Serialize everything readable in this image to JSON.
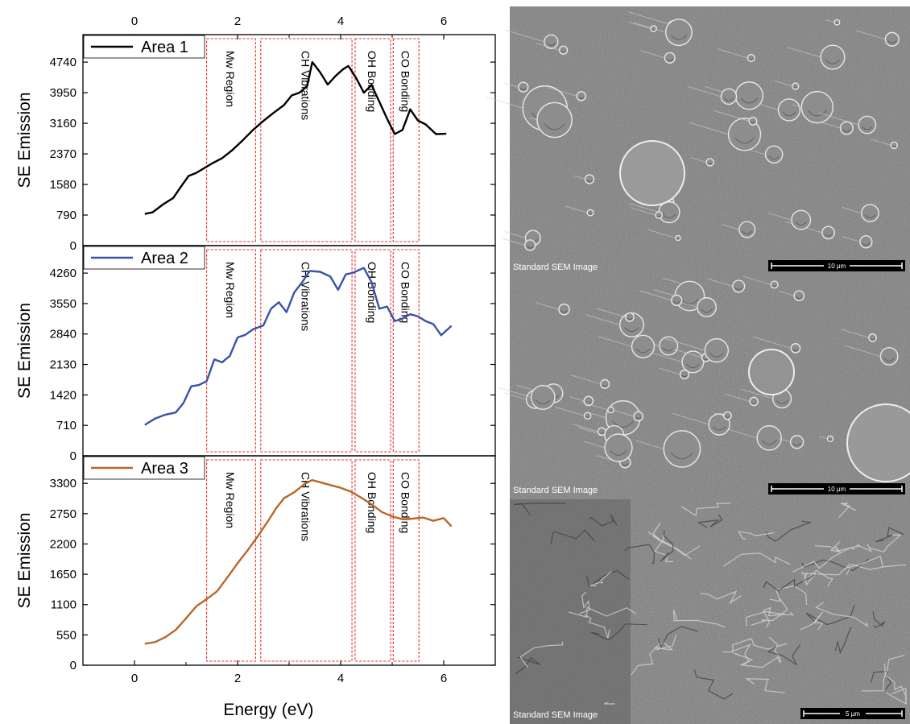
{
  "chart_data": {
    "type": "line",
    "shared_x": {
      "label": "Energy (eV)",
      "ticks": [
        0,
        2,
        4,
        6
      ],
      "range": [
        -1,
        7
      ]
    },
    "regions": [
      {
        "label": "Mw Region",
        "x_start": 1.4,
        "x_end": 2.35
      },
      {
        "label": "CH Vibrations",
        "x_start": 2.45,
        "x_end": 4.22
      },
      {
        "label": "OH Bonding",
        "x_start": 4.28,
        "x_end": 4.97
      },
      {
        "label": "CO Bonding",
        "x_start": 5.02,
        "x_end": 5.52
      }
    ],
    "panels": [
      {
        "ylabel": "SE Emission",
        "ylim": [
          0,
          5450
        ],
        "yticks": [
          0,
          790,
          1580,
          2370,
          3160,
          3950,
          4740
        ],
        "series": [
          {
            "name": "Area 1",
            "color": "#000000",
            "points": [
              [
                0.2,
                820
              ],
              [
                0.35,
                860
              ],
              [
                0.55,
                1060
              ],
              [
                0.75,
                1230
              ],
              [
                0.9,
                1520
              ],
              [
                1.05,
                1800
              ],
              [
                1.2,
                1880
              ],
              [
                1.35,
                2000
              ],
              [
                1.5,
                2120
              ],
              [
                1.7,
                2260
              ],
              [
                1.9,
                2470
              ],
              [
                2.1,
                2720
              ],
              [
                2.3,
                2990
              ],
              [
                2.5,
                3220
              ],
              [
                2.7,
                3430
              ],
              [
                2.9,
                3630
              ],
              [
                3.05,
                3880
              ],
              [
                3.2,
                3950
              ],
              [
                3.35,
                4120
              ],
              [
                3.45,
                4740
              ],
              [
                3.6,
                4480
              ],
              [
                3.75,
                4160
              ],
              [
                3.9,
                4380
              ],
              [
                4.05,
                4560
              ],
              [
                4.15,
                4640
              ],
              [
                4.3,
                4330
              ],
              [
                4.45,
                3950
              ],
              [
                4.6,
                4150
              ],
              [
                4.75,
                3720
              ],
              [
                4.9,
                3280
              ],
              [
                5.05,
                2880
              ],
              [
                5.2,
                2990
              ],
              [
                5.35,
                3520
              ],
              [
                5.5,
                3230
              ],
              [
                5.65,
                3130
              ],
              [
                5.85,
                2880
              ],
              [
                6.05,
                2890
              ]
            ]
          }
        ]
      },
      {
        "ylabel": "SE Emission",
        "ylim": [
          0,
          4900
        ],
        "yticks": [
          0,
          710,
          1420,
          2130,
          2840,
          3550,
          4260
        ],
        "series": [
          {
            "name": "Area 2",
            "color": "#3a52a8",
            "points": [
              [
                0.2,
                720
              ],
              [
                0.4,
                870
              ],
              [
                0.6,
                960
              ],
              [
                0.8,
                1010
              ],
              [
                0.95,
                1230
              ],
              [
                1.1,
                1620
              ],
              [
                1.25,
                1650
              ],
              [
                1.4,
                1740
              ],
              [
                1.55,
                2250
              ],
              [
                1.7,
                2180
              ],
              [
                1.85,
                2330
              ],
              [
                2.0,
                2760
              ],
              [
                2.15,
                2820
              ],
              [
                2.3,
                2950
              ],
              [
                2.5,
                3040
              ],
              [
                2.65,
                3430
              ],
              [
                2.8,
                3580
              ],
              [
                2.95,
                3350
              ],
              [
                3.1,
                3810
              ],
              [
                3.25,
                4040
              ],
              [
                3.4,
                4310
              ],
              [
                3.6,
                4290
              ],
              [
                3.8,
                4180
              ],
              [
                3.95,
                3870
              ],
              [
                4.1,
                4230
              ],
              [
                4.25,
                4270
              ],
              [
                4.35,
                4330
              ],
              [
                4.45,
                4380
              ],
              [
                4.6,
                4050
              ],
              [
                4.75,
                3430
              ],
              [
                4.9,
                3480
              ],
              [
                5.05,
                3140
              ],
              [
                5.2,
                3200
              ],
              [
                5.35,
                3300
              ],
              [
                5.5,
                3250
              ],
              [
                5.65,
                3140
              ],
              [
                5.8,
                3070
              ],
              [
                5.95,
                2810
              ],
              [
                6.15,
                3030
              ]
            ]
          }
        ]
      },
      {
        "ylabel": "SE Emission",
        "ylim": [
          0,
          3800
        ],
        "yticks": [
          0,
          550,
          1100,
          1650,
          2200,
          2750,
          3300
        ],
        "series": [
          {
            "name": "Area 3",
            "color": "#b8672a",
            "points": [
              [
                0.2,
                390
              ],
              [
                0.4,
                420
              ],
              [
                0.6,
                510
              ],
              [
                0.8,
                640
              ],
              [
                1.0,
                850
              ],
              [
                1.2,
                1070
              ],
              [
                1.4,
                1200
              ],
              [
                1.6,
                1340
              ],
              [
                1.8,
                1590
              ],
              [
                2.0,
                1850
              ],
              [
                2.2,
                2090
              ],
              [
                2.4,
                2350
              ],
              [
                2.6,
                2630
              ],
              [
                2.75,
                2850
              ],
              [
                2.9,
                3030
              ],
              [
                3.1,
                3140
              ],
              [
                3.3,
                3290
              ],
              [
                3.45,
                3360
              ],
              [
                3.6,
                3320
              ],
              [
                3.8,
                3270
              ],
              [
                4.0,
                3220
              ],
              [
                4.2,
                3150
              ],
              [
                4.4,
                3040
              ],
              [
                4.6,
                2920
              ],
              [
                4.8,
                2780
              ],
              [
                5.0,
                2700
              ],
              [
                5.2,
                2650
              ],
              [
                5.4,
                2660
              ],
              [
                5.6,
                2680
              ],
              [
                5.8,
                2620
              ],
              [
                6.0,
                2670
              ],
              [
                6.15,
                2520
              ]
            ]
          }
        ]
      }
    ]
  },
  "sem_images": [
    {
      "label": "Standard SEM Image",
      "scale": "10 μm"
    },
    {
      "label": "Standard SEM Image",
      "scale": "10 μm"
    },
    {
      "label": "Standard SEM Image",
      "scale": "5 μm"
    }
  ],
  "colors": {
    "region_border": "#e52b2b",
    "sem_background": "#7d7d7d"
  }
}
